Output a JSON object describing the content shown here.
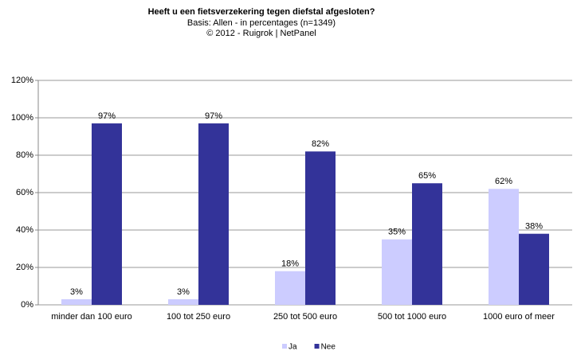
{
  "chart_data": {
    "type": "bar",
    "title": "Heeft u een fietsverzekering tegen diefstal afgesloten?",
    "subtitle": [
      "Basis: Allen - in percentages (n=1349)",
      "©  2012 - Ruigrok | NetPanel"
    ],
    "categories": [
      "minder dan 100 euro",
      "100 tot 250 euro",
      "250 tot 500 euro",
      "500 tot 1000 euro",
      "1000 euro of meer"
    ],
    "series": [
      {
        "name": "Ja",
        "color": "#ccccff",
        "values": [
          3,
          3,
          18,
          35,
          62
        ],
        "value_labels": [
          "3%",
          "3%",
          "18%",
          "35%",
          "62%"
        ]
      },
      {
        "name": "Nee",
        "color": "#333399",
        "values": [
          97,
          97,
          82,
          65,
          38
        ],
        "value_labels": [
          "97%",
          "97%",
          "82%",
          "65%",
          "38%"
        ]
      }
    ],
    "ylim": [
      0,
      120
    ],
    "yticks": [
      {
        "value": 0,
        "label": "0%"
      },
      {
        "value": 20,
        "label": "20%"
      },
      {
        "value": 40,
        "label": "40%"
      },
      {
        "value": 60,
        "label": "60%"
      },
      {
        "value": 80,
        "label": "80%"
      },
      {
        "value": 100,
        "label": "100%"
      },
      {
        "value": 120,
        "label": "120%"
      }
    ],
    "grid": true,
    "legend": "bottom"
  }
}
